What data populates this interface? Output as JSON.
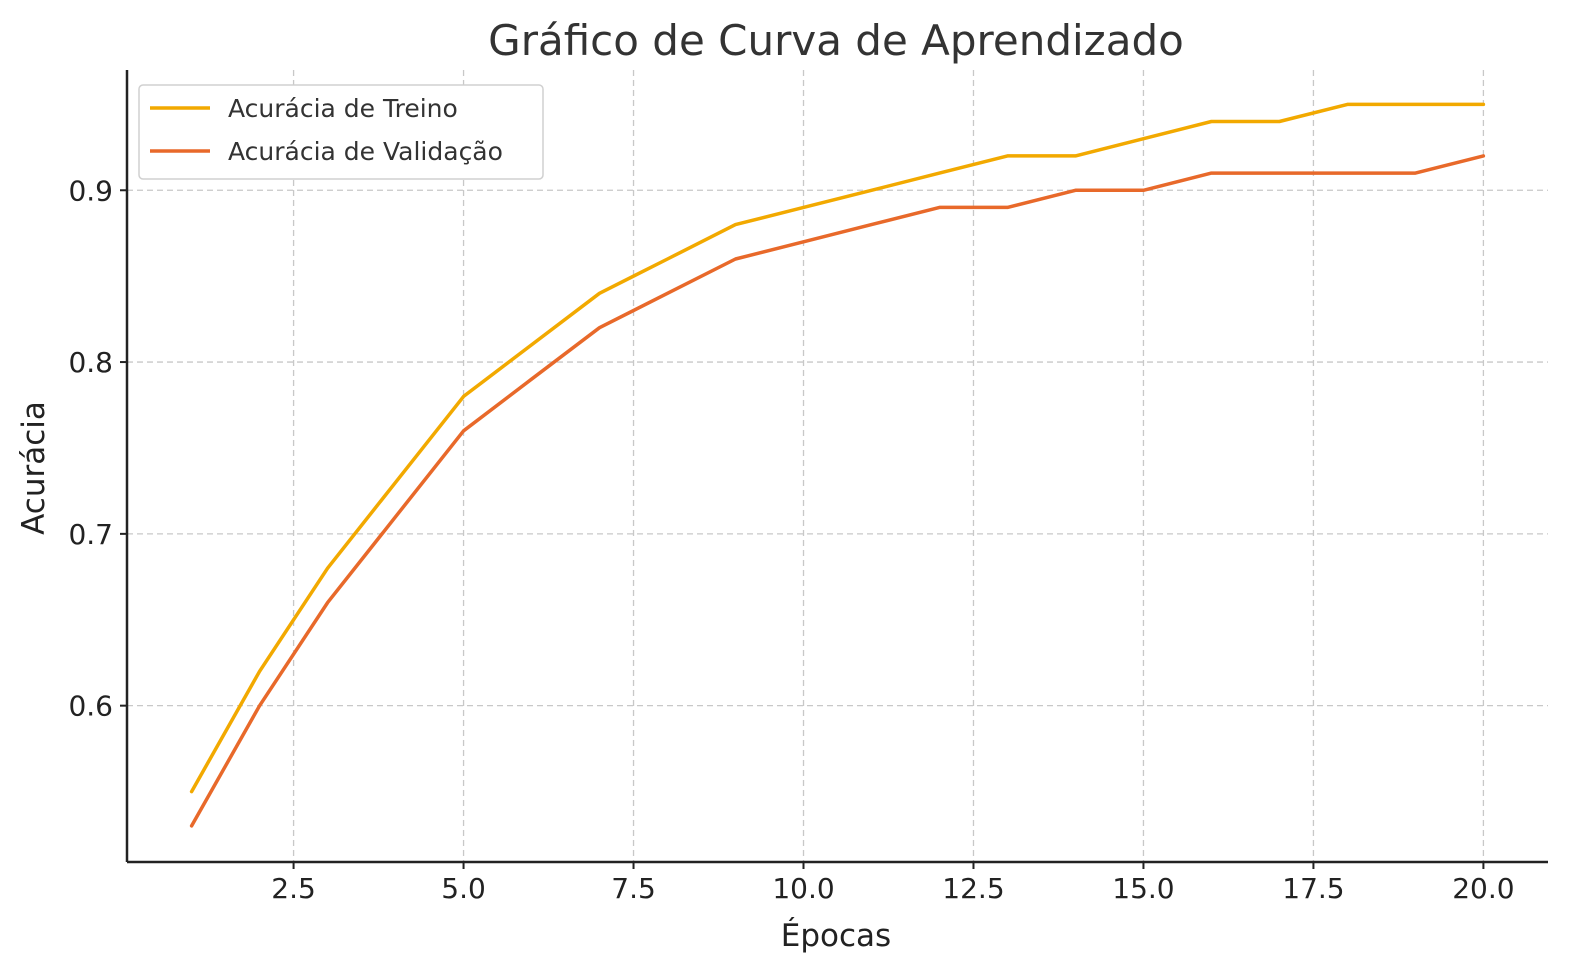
{
  "chart_data": {
    "type": "line",
    "title": "Gráfico de Curva de Aprendizado",
    "xlabel": "Épocas",
    "ylabel": "Acurácia",
    "xlim": [
      0.05,
      20.95
    ],
    "ylim": [
      0.509,
      0.97
    ],
    "xticks": [
      2.5,
      5.0,
      7.5,
      10.0,
      12.5,
      15.0,
      17.5,
      20.0
    ],
    "xtick_labels": [
      "2.5",
      "5.0",
      "7.5",
      "10.0",
      "12.5",
      "15.0",
      "17.5",
      "20.0"
    ],
    "yticks": [
      0.6,
      0.7,
      0.8,
      0.9
    ],
    "ytick_labels": [
      "0.6",
      "0.7",
      "0.8",
      "0.9"
    ],
    "grid": true,
    "legend_position": "top-left",
    "x": [
      1,
      2,
      3,
      4,
      5,
      6,
      7,
      8,
      9,
      10,
      11,
      12,
      13,
      14,
      15,
      16,
      17,
      18,
      19,
      20
    ],
    "series": [
      {
        "name": "Acurácia de Treino",
        "color": "#F2A900",
        "values": [
          0.55,
          0.62,
          0.68,
          0.73,
          0.78,
          0.81,
          0.84,
          0.86,
          0.88,
          0.89,
          0.9,
          0.91,
          0.92,
          0.92,
          0.93,
          0.94,
          0.94,
          0.95,
          0.95,
          0.95
        ]
      },
      {
        "name": "Acurácia de Validação",
        "color": "#E8692A",
        "values": [
          0.53,
          0.6,
          0.66,
          0.71,
          0.76,
          0.79,
          0.82,
          0.84,
          0.86,
          0.87,
          0.88,
          0.89,
          0.89,
          0.9,
          0.9,
          0.91,
          0.91,
          0.91,
          0.91,
          0.92
        ]
      }
    ]
  }
}
